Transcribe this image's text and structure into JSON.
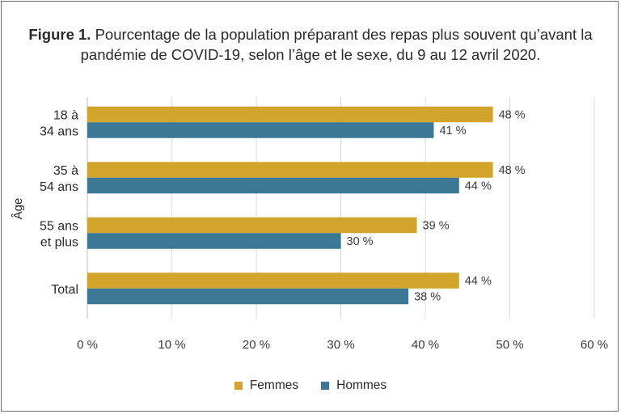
{
  "title_bold": "Figure 1.",
  "title_text": " Pourcentage de la population préparant des repas plus souvent qu’avant la pandémie de COVID-19, selon l’âge et le sexe, du 9 au 12 avril 2020.",
  "colors": {
    "femmes": "#d1a52b",
    "hommes": "#3a7895"
  },
  "chart_data": {
    "type": "bar",
    "orientation": "horizontal",
    "categories": [
      [
        "18 à",
        "34 ans"
      ],
      [
        "35 à",
        "54 ans"
      ],
      [
        "55 ans",
        "et plus"
      ],
      [
        "Total"
      ]
    ],
    "series": [
      {
        "name": "Femmes",
        "values": [
          48,
          48,
          39,
          44
        ],
        "labels": [
          "48 %",
          "48 %",
          "39 %",
          "44 %"
        ]
      },
      {
        "name": "Hommes",
        "values": [
          41,
          44,
          30,
          38
        ],
        "labels": [
          "41 %",
          "44 %",
          "30 %",
          "38 %"
        ]
      }
    ],
    "ylabel": "Âge",
    "xlim": [
      0,
      60
    ],
    "xticks": [
      0,
      10,
      20,
      30,
      40,
      50,
      60
    ],
    "xtick_labels": [
      "0 %",
      "10 %",
      "20 %",
      "30 %",
      "40 %",
      "50 %",
      "60 %"
    ],
    "grid": "vertical",
    "legend_position": "bottom-center"
  }
}
